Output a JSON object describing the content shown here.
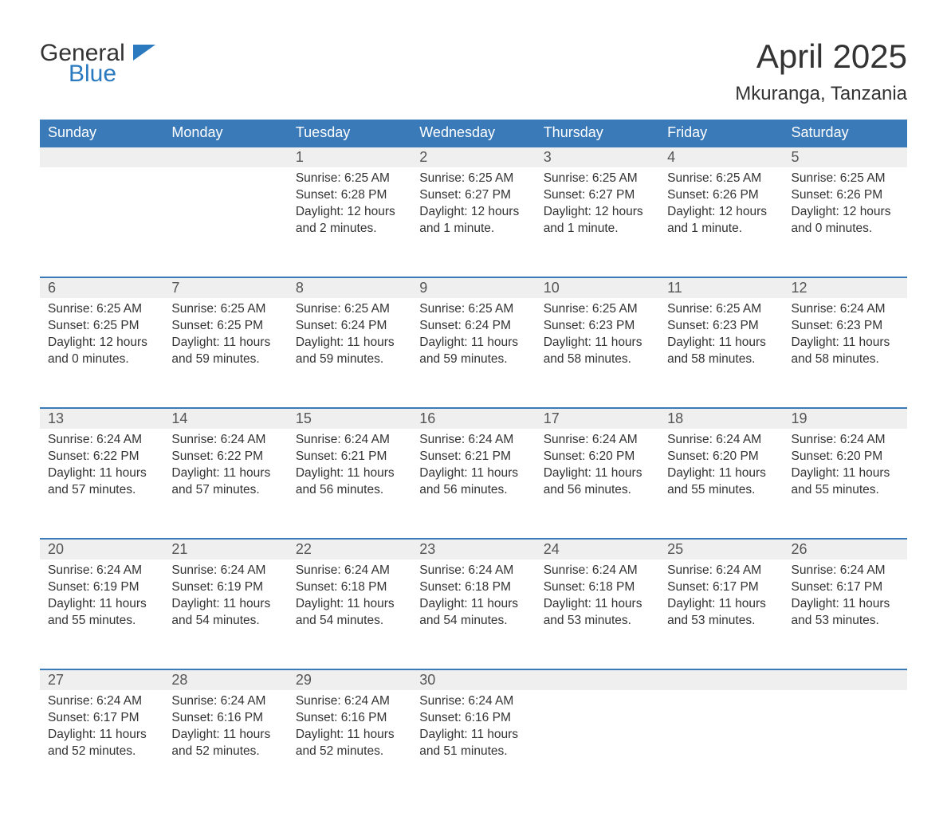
{
  "brand": {
    "part1": "General",
    "part2": "Blue",
    "accent_color": "#2b7ac0"
  },
  "title": "April 2025",
  "location": "Mkuranga, Tanzania",
  "colors": {
    "header_bg": "#3a7ab8",
    "header_fg": "#ffffff",
    "daynum_bg": "#efefef",
    "row_border": "#3a7ab8",
    "text": "#333333"
  },
  "typography": {
    "title_fontsize": 42,
    "location_fontsize": 24,
    "dayheader_fontsize": 18,
    "daynum_fontsize": 18,
    "body_fontsize": 15.5
  },
  "day_headers": [
    "Sunday",
    "Monday",
    "Tuesday",
    "Wednesday",
    "Thursday",
    "Friday",
    "Saturday"
  ],
  "weeks": [
    [
      null,
      null,
      {
        "n": "1",
        "sunrise": "6:25 AM",
        "sunset": "6:28 PM",
        "daylight": "12 hours and 2 minutes."
      },
      {
        "n": "2",
        "sunrise": "6:25 AM",
        "sunset": "6:27 PM",
        "daylight": "12 hours and 1 minute."
      },
      {
        "n": "3",
        "sunrise": "6:25 AM",
        "sunset": "6:27 PM",
        "daylight": "12 hours and 1 minute."
      },
      {
        "n": "4",
        "sunrise": "6:25 AM",
        "sunset": "6:26 PM",
        "daylight": "12 hours and 1 minute."
      },
      {
        "n": "5",
        "sunrise": "6:25 AM",
        "sunset": "6:26 PM",
        "daylight": "12 hours and 0 minutes."
      }
    ],
    [
      {
        "n": "6",
        "sunrise": "6:25 AM",
        "sunset": "6:25 PM",
        "daylight": "12 hours and 0 minutes."
      },
      {
        "n": "7",
        "sunrise": "6:25 AM",
        "sunset": "6:25 PM",
        "daylight": "11 hours and 59 minutes."
      },
      {
        "n": "8",
        "sunrise": "6:25 AM",
        "sunset": "6:24 PM",
        "daylight": "11 hours and 59 minutes."
      },
      {
        "n": "9",
        "sunrise": "6:25 AM",
        "sunset": "6:24 PM",
        "daylight": "11 hours and 59 minutes."
      },
      {
        "n": "10",
        "sunrise": "6:25 AM",
        "sunset": "6:23 PM",
        "daylight": "11 hours and 58 minutes."
      },
      {
        "n": "11",
        "sunrise": "6:25 AM",
        "sunset": "6:23 PM",
        "daylight": "11 hours and 58 minutes."
      },
      {
        "n": "12",
        "sunrise": "6:24 AM",
        "sunset": "6:23 PM",
        "daylight": "11 hours and 58 minutes."
      }
    ],
    [
      {
        "n": "13",
        "sunrise": "6:24 AM",
        "sunset": "6:22 PM",
        "daylight": "11 hours and 57 minutes."
      },
      {
        "n": "14",
        "sunrise": "6:24 AM",
        "sunset": "6:22 PM",
        "daylight": "11 hours and 57 minutes."
      },
      {
        "n": "15",
        "sunrise": "6:24 AM",
        "sunset": "6:21 PM",
        "daylight": "11 hours and 56 minutes."
      },
      {
        "n": "16",
        "sunrise": "6:24 AM",
        "sunset": "6:21 PM",
        "daylight": "11 hours and 56 minutes."
      },
      {
        "n": "17",
        "sunrise": "6:24 AM",
        "sunset": "6:20 PM",
        "daylight": "11 hours and 56 minutes."
      },
      {
        "n": "18",
        "sunrise": "6:24 AM",
        "sunset": "6:20 PM",
        "daylight": "11 hours and 55 minutes."
      },
      {
        "n": "19",
        "sunrise": "6:24 AM",
        "sunset": "6:20 PM",
        "daylight": "11 hours and 55 minutes."
      }
    ],
    [
      {
        "n": "20",
        "sunrise": "6:24 AM",
        "sunset": "6:19 PM",
        "daylight": "11 hours and 55 minutes."
      },
      {
        "n": "21",
        "sunrise": "6:24 AM",
        "sunset": "6:19 PM",
        "daylight": "11 hours and 54 minutes."
      },
      {
        "n": "22",
        "sunrise": "6:24 AM",
        "sunset": "6:18 PM",
        "daylight": "11 hours and 54 minutes."
      },
      {
        "n": "23",
        "sunrise": "6:24 AM",
        "sunset": "6:18 PM",
        "daylight": "11 hours and 54 minutes."
      },
      {
        "n": "24",
        "sunrise": "6:24 AM",
        "sunset": "6:18 PM",
        "daylight": "11 hours and 53 minutes."
      },
      {
        "n": "25",
        "sunrise": "6:24 AM",
        "sunset": "6:17 PM",
        "daylight": "11 hours and 53 minutes."
      },
      {
        "n": "26",
        "sunrise": "6:24 AM",
        "sunset": "6:17 PM",
        "daylight": "11 hours and 53 minutes."
      }
    ],
    [
      {
        "n": "27",
        "sunrise": "6:24 AM",
        "sunset": "6:17 PM",
        "daylight": "11 hours and 52 minutes."
      },
      {
        "n": "28",
        "sunrise": "6:24 AM",
        "sunset": "6:16 PM",
        "daylight": "11 hours and 52 minutes."
      },
      {
        "n": "29",
        "sunrise": "6:24 AM",
        "sunset": "6:16 PM",
        "daylight": "11 hours and 52 minutes."
      },
      {
        "n": "30",
        "sunrise": "6:24 AM",
        "sunset": "6:16 PM",
        "daylight": "11 hours and 51 minutes."
      },
      null,
      null,
      null
    ]
  ],
  "labels": {
    "sunrise": "Sunrise:",
    "sunset": "Sunset:",
    "daylight": "Daylight:"
  }
}
